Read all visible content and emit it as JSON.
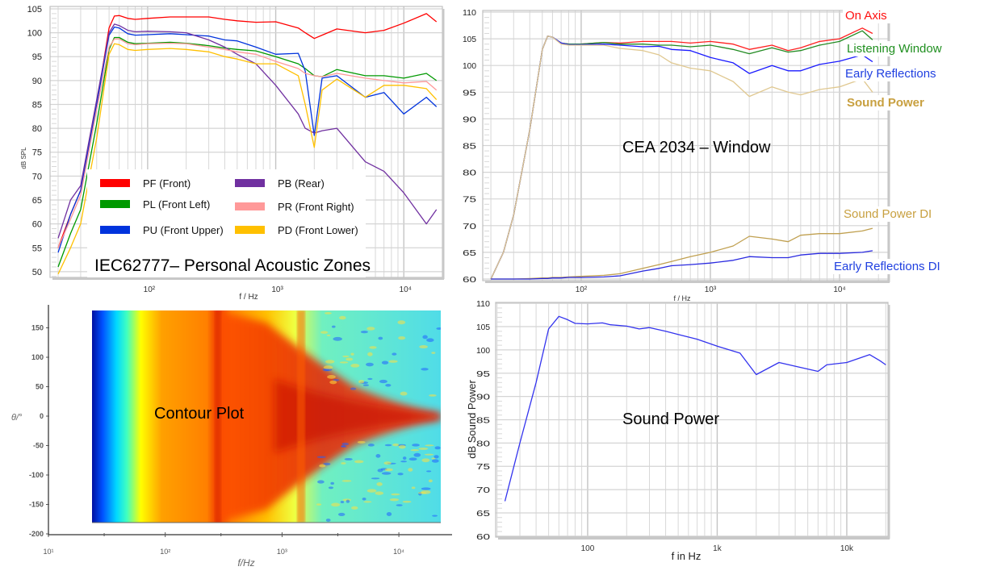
{
  "chart_data": [
    {
      "type": "line",
      "title": "IEC62777– Personal Acoustic Zones",
      "xlabel": "f / Hz",
      "ylabel": "dB SPL",
      "xscale": "log",
      "xlim": [
        17.3,
        20000
      ],
      "ylim": [
        48.8,
        105.5
      ],
      "yticks": [
        50,
        55,
        60,
        65,
        70,
        75,
        80,
        85,
        90,
        95,
        100,
        105
      ],
      "xticks": [
        {
          "value": 100,
          "label": "10²"
        },
        {
          "value": 1000,
          "label": "10³"
        },
        {
          "value": 10000,
          "label": "10⁴"
        }
      ],
      "grid": true,
      "legend": "bottom-center",
      "x": [
        20,
        25,
        30,
        40,
        50,
        55,
        60,
        70,
        80,
        100,
        150,
        200,
        300,
        400,
        500,
        700,
        1000,
        1500,
        1700,
        2000,
        2300,
        3000,
        5000,
        7000,
        10000,
        15000,
        18000
      ],
      "series": [
        {
          "name": "PF (Front)",
          "color": "#ff0000",
          "values": [
            55,
            62,
            67,
            85,
            101,
            103.5,
            103.6,
            103,
            102.8,
            103,
            103.3,
            103.3,
            103.3,
            102.8,
            102.5,
            102.2,
            102.3,
            101,
            100,
            98.8,
            99.5,
            100.8,
            100,
            100.5,
            102,
            104,
            102.3
          ]
        },
        {
          "name": "PL (Front Left)",
          "color": "#009900",
          "values": [
            51,
            58,
            63,
            81,
            96.5,
            99,
            99,
            98,
            97.7,
            97.8,
            98,
            97.8,
            97.3,
            96.8,
            96.5,
            96.2,
            95,
            93.5,
            92.5,
            91,
            90.8,
            92.3,
            91,
            91,
            90.5,
            91.5,
            90
          ]
        },
        {
          "name": "PU (Front Upper)",
          "color": "#0033dd",
          "values": [
            54,
            62,
            67,
            85,
            99.5,
            101.2,
            101,
            99.8,
            99.5,
            99.6,
            99.8,
            99.6,
            99.3,
            98.5,
            98.3,
            97,
            95.5,
            95.7,
            92,
            78.5,
            90.5,
            91,
            86.5,
            87.5,
            83,
            86.5,
            84.5
          ]
        },
        {
          "name": "PB (Rear)",
          "color": "#7030a0",
          "values": [
            57,
            65,
            68,
            86,
            100,
            101.8,
            101.5,
            100.5,
            100.2,
            100.3,
            100.2,
            100,
            98.5,
            97,
            95.5,
            93.5,
            89,
            83,
            80,
            79,
            79.5,
            80,
            73,
            71,
            66.5,
            60,
            63
          ]
        },
        {
          "name": "PR (Front Right)",
          "color": "#ff9999",
          "values": [
            55,
            61,
            66,
            84,
            97,
            98.7,
            98.7,
            97.7,
            97.5,
            97.7,
            97.8,
            97.7,
            97,
            96.5,
            96,
            95.5,
            94,
            92.5,
            91.5,
            91,
            90.8,
            91.5,
            90.5,
            90,
            89.5,
            89.8,
            88
          ]
        },
        {
          "name": "PD (Front Lower)",
          "color": "#ffc000",
          "values": [
            49.5,
            55,
            60,
            78,
            95.5,
            97.7,
            97.5,
            96.5,
            96.3,
            96.5,
            96.7,
            96.5,
            96,
            95,
            94.5,
            93.5,
            93.5,
            91,
            85,
            76,
            88,
            90.3,
            86.5,
            89,
            89,
            88.3,
            86
          ]
        }
      ]
    },
    {
      "type": "line",
      "title": "CEA 2034 – Window",
      "xlabel": "f / Hz",
      "ylabel": "",
      "xscale": "log",
      "xlim": [
        17.3,
        23700
      ],
      "ylim": [
        59.7,
        110.3
      ],
      "yticks": [
        60,
        65,
        70,
        75,
        80,
        85,
        90,
        95,
        100,
        105,
        110
      ],
      "xticks": [
        {
          "value": 100,
          "label": "10²"
        },
        {
          "value": 1000,
          "label": "10³"
        },
        {
          "value": 10000,
          "label": "10⁴"
        }
      ],
      "grid": true,
      "legend": "right (inline labels)",
      "x": [
        20,
        25,
        30,
        40,
        50,
        55,
        60,
        70,
        80,
        100,
        150,
        200,
        300,
        400,
        500,
        700,
        1000,
        1500,
        2000,
        3000,
        4000,
        5000,
        7000,
        10000,
        15000,
        18000
      ],
      "series": [
        {
          "name": "On Axis",
          "color": "#ff2020",
          "values": [
            60,
            65,
            72,
            88,
            103,
            105.5,
            105.3,
            104.2,
            104,
            104,
            104.3,
            104.2,
            104.5,
            104.5,
            104.5,
            104.2,
            104.5,
            104,
            103,
            103.8,
            102.8,
            103.3,
            104.5,
            105,
            107,
            106
          ]
        },
        {
          "name": "Listening Window",
          "color": "#228b22",
          "values": [
            60,
            65,
            72,
            88,
            103,
            105.5,
            105.3,
            104.2,
            104,
            104,
            104.3,
            104,
            104,
            103.8,
            103.8,
            103.5,
            103.8,
            103,
            102.2,
            103.3,
            102.5,
            102.8,
            103.8,
            104.5,
            106.5,
            104.8
          ]
        },
        {
          "name": "Early Reflections",
          "color": "#1a1aff",
          "values": [
            60,
            65,
            72,
            88,
            103,
            105.5,
            105.3,
            104.2,
            103.9,
            103.9,
            104,
            103.8,
            103.5,
            103.6,
            103,
            102.8,
            101.5,
            100.5,
            98.5,
            100,
            99,
            99,
            100.2,
            100.8,
            102,
            100.7
          ]
        },
        {
          "name": "Sound Power",
          "color": "#e0c890",
          "values": [
            60,
            65,
            72,
            88,
            103,
            105.5,
            105.3,
            104,
            103.8,
            103.8,
            103.8,
            103.2,
            102.8,
            102,
            100.5,
            99.5,
            99,
            97,
            94.2,
            96,
            95,
            94.5,
            95.5,
            96,
            97.5,
            95
          ]
        },
        {
          "name": "Sound Power DI",
          "color": "#c0a050",
          "values": [
            60,
            60,
            60,
            60.1,
            60.2,
            60.2,
            60.3,
            60.3,
            60.4,
            60.5,
            60.7,
            61,
            62,
            62.7,
            63.3,
            64.2,
            65,
            66.2,
            68,
            67.5,
            67,
            68.2,
            68.5,
            68.5,
            69,
            69.5
          ]
        },
        {
          "name": "Early Reflections DI",
          "color": "#2a2ae0",
          "values": [
            60,
            60,
            60,
            60,
            60.1,
            60.1,
            60.2,
            60.2,
            60.3,
            60.3,
            60.4,
            60.6,
            61.5,
            62,
            62.5,
            62.7,
            63,
            63.5,
            64.2,
            64,
            64,
            64.5,
            64.8,
            64.8,
            65,
            65.3
          ]
        }
      ]
    },
    {
      "type": "heatmap",
      "title": "Contour Plot",
      "xlabel": "f/Hz",
      "ylabel": "θ/°",
      "xscale": "log",
      "xlim": [
        10,
        25000
      ],
      "ylim": [
        -200,
        180
      ],
      "data_xrange": [
        22,
        22000
      ],
      "data_yrange": [
        -180,
        180
      ],
      "yticks": [
        150,
        100,
        50,
        0,
        -50,
        -100,
        -150,
        -200
      ],
      "xticks": [
        {
          "value": 10,
          "label": "10¹"
        },
        {
          "value": 100,
          "label": "10²"
        },
        {
          "value": 1000,
          "label": "10³"
        },
        {
          "value": 10000,
          "label": "10⁴"
        }
      ],
      "colormap": [
        "#0010a0",
        "#0060ff",
        "#00e0ff",
        "#ffff00",
        "#ff8c00",
        "#e02000"
      ]
    },
    {
      "type": "line",
      "title": "Sound Power",
      "xlabel": "f in Hz",
      "ylabel": "dB Sound Power",
      "xscale": "log",
      "xlim": [
        19.5,
        20800
      ],
      "ylim": [
        59.8,
        110.2
      ],
      "yticks": [
        60,
        65,
        70,
        75,
        80,
        85,
        90,
        95,
        100,
        105,
        110
      ],
      "xticks": [
        {
          "value": 100,
          "label": "100"
        },
        {
          "value": 1000,
          "label": "1k"
        },
        {
          "value": 10000,
          "label": "10k"
        }
      ],
      "grid": true,
      "x": [
        23,
        30,
        40,
        50,
        60,
        70,
        80,
        100,
        130,
        150,
        200,
        250,
        300,
        400,
        500,
        700,
        1000,
        1500,
        2000,
        3000,
        4000,
        5000,
        6000,
        7000,
        10000,
        15000,
        18000,
        20000
      ],
      "series": [
        {
          "name": "Sound Power",
          "color": "#3333ee",
          "values": [
            67.5,
            80,
            93,
            104.5,
            107.2,
            106.5,
            105.7,
            105.6,
            105.8,
            105.4,
            105.1,
            104.5,
            104.8,
            104,
            103.3,
            102.3,
            100.8,
            99.3,
            94.7,
            97.3,
            96.5,
            95.9,
            95.4,
            96.8,
            97.3,
            99,
            97.7,
            96.8
          ]
        }
      ]
    }
  ]
}
